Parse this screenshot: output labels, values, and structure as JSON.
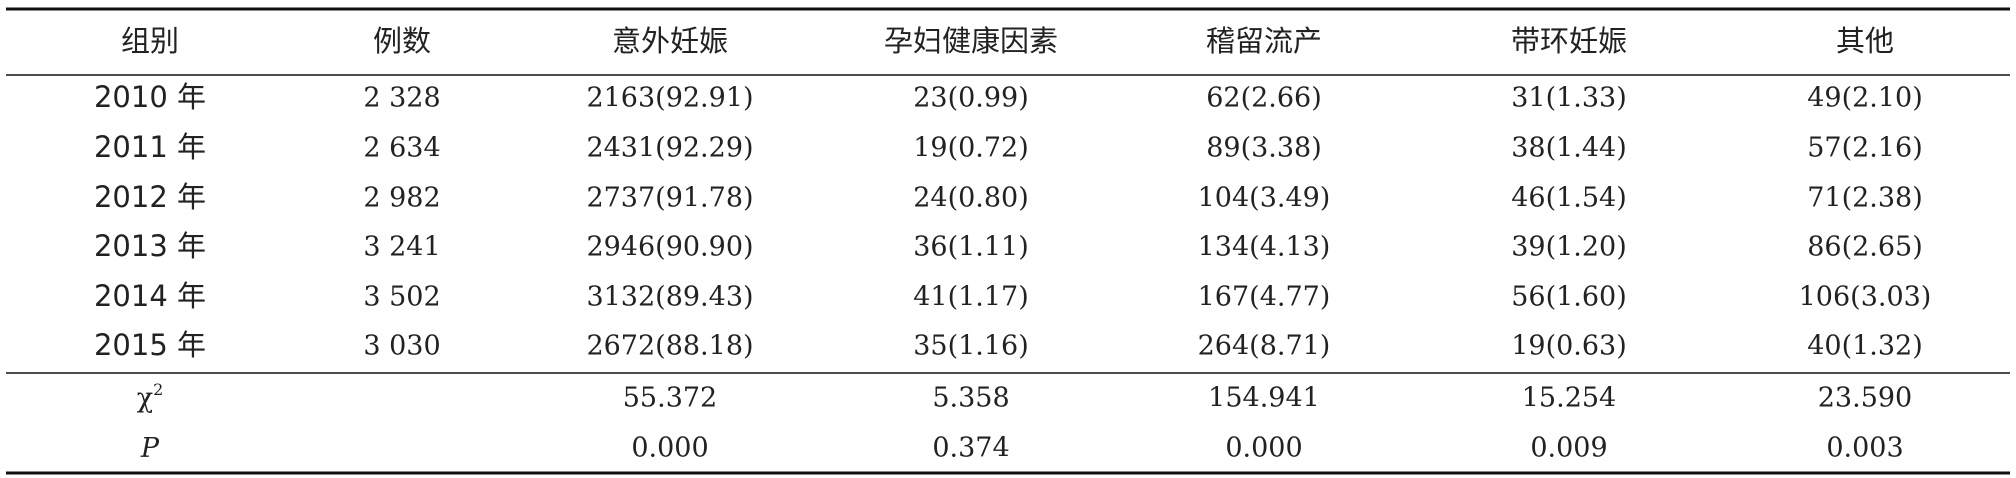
{
  "table": {
    "columns": [
      "组别",
      "例数",
      "意外妊娠",
      "孕妇健康因素",
      "稽留流产",
      "带环妊娠",
      "其他"
    ],
    "rows": [
      [
        "2010 年",
        "2 328",
        "2163(92.91)",
        "23(0.99)",
        "62(2.66)",
        "31(1.33)",
        "49(2.10)"
      ],
      [
        "2011 年",
        "2 634",
        "2431(92.29)",
        "19(0.72)",
        "89(3.38)",
        "38(1.44)",
        "57(2.16)"
      ],
      [
        "2012 年",
        "2 982",
        "2737(91.78)",
        "24(0.80)",
        "104(3.49)",
        "46(1.54)",
        "71(2.38)"
      ],
      [
        "2013 年",
        "3 241",
        "2946(90.90)",
        "36(1.11)",
        "134(4.13)",
        "39(1.20)",
        "86(2.65)"
      ],
      [
        "2014 年",
        "3 502",
        "3132(89.43)",
        "41(1.17)",
        "167(4.77)",
        "56(1.60)",
        "106(3.03)"
      ],
      [
        "2015 年",
        "3 030",
        "2672(88.18)",
        "35(1.16)",
        "264(8.71)",
        "19(0.63)",
        "40(1.32)"
      ]
    ],
    "stats": [
      {
        "label": "χ",
        "label_sup": "2",
        "values": [
          "55.372",
          "5.358",
          "154.941",
          "15.254",
          "23.590"
        ]
      },
      {
        "label": "P",
        "values": [
          "0.000",
          "0.374",
          "0.000",
          "0.009",
          "0.003"
        ]
      }
    ]
  }
}
